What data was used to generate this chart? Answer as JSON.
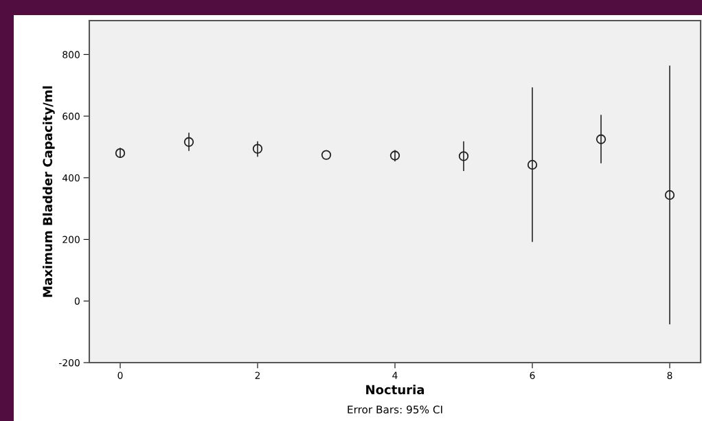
{
  "chart_data": {
    "type": "scatter",
    "xlabel": "Nocturia",
    "ylabel": "Maximum Bladder Capacity/ml",
    "x": [
      0,
      1,
      2,
      3,
      4,
      5,
      6,
      7,
      8
    ],
    "series": [
      {
        "color": "#222222",
        "values": [
          480,
          516,
          494,
          474,
          472,
          470,
          442,
          525,
          344
        ],
        "errors": [
          [
            464,
            497
          ],
          [
            487,
            546
          ],
          [
            468,
            518
          ],
          null,
          [
            453,
            490
          ],
          [
            422,
            518
          ],
          [
            192,
            693
          ],
          [
            447,
            604
          ],
          [
            -76,
            764
          ]
        ]
      }
    ],
    "marker": "circle",
    "xlim": [
      -0.45,
      8.45
    ],
    "xticks": [
      0,
      2,
      4,
      6,
      8
    ],
    "ylim": [
      -200,
      910
    ],
    "yticks": [
      -200,
      0,
      200,
      400,
      600,
      800
    ],
    "grid": false,
    "legend": false,
    "annotations": [
      "Error Bars: 95% CI"
    ]
  }
}
